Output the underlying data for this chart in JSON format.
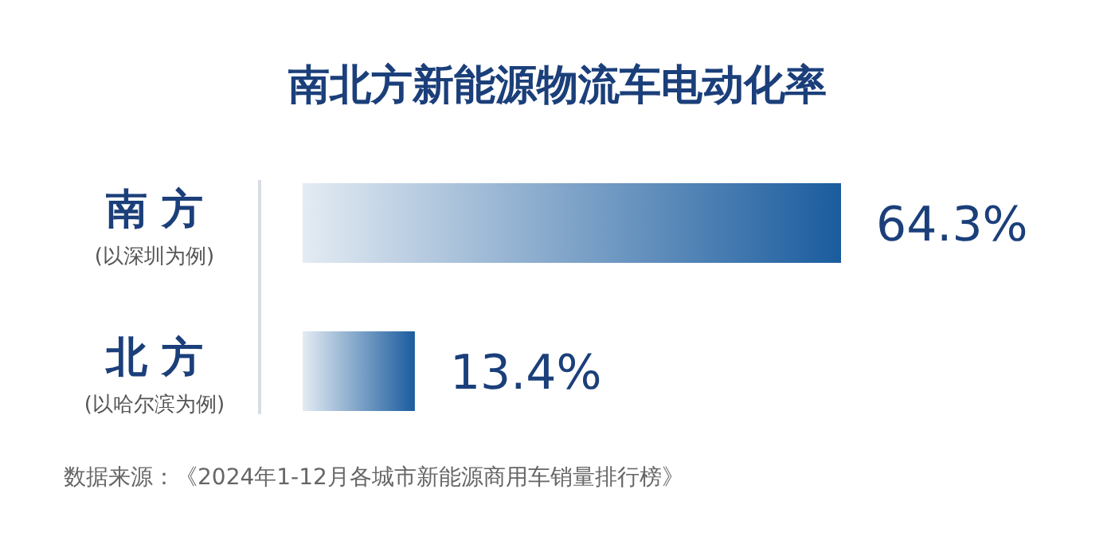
{
  "chart_data": {
    "type": "bar",
    "orientation": "horizontal",
    "title": "南北方新能源物流车电动化率",
    "categories": [
      "南 方",
      "北 方"
    ],
    "values": [
      64.3,
      13.4
    ],
    "value_labels": [
      "64.3%",
      "13.4%"
    ],
    "color": "#1a5c9e",
    "annotations": [
      "(以深圳为例)",
      "(以哈尔滨为例)",
      "数据来源：《2024年1-12月各城市新能源商用车销量排行榜》"
    ]
  }
}
